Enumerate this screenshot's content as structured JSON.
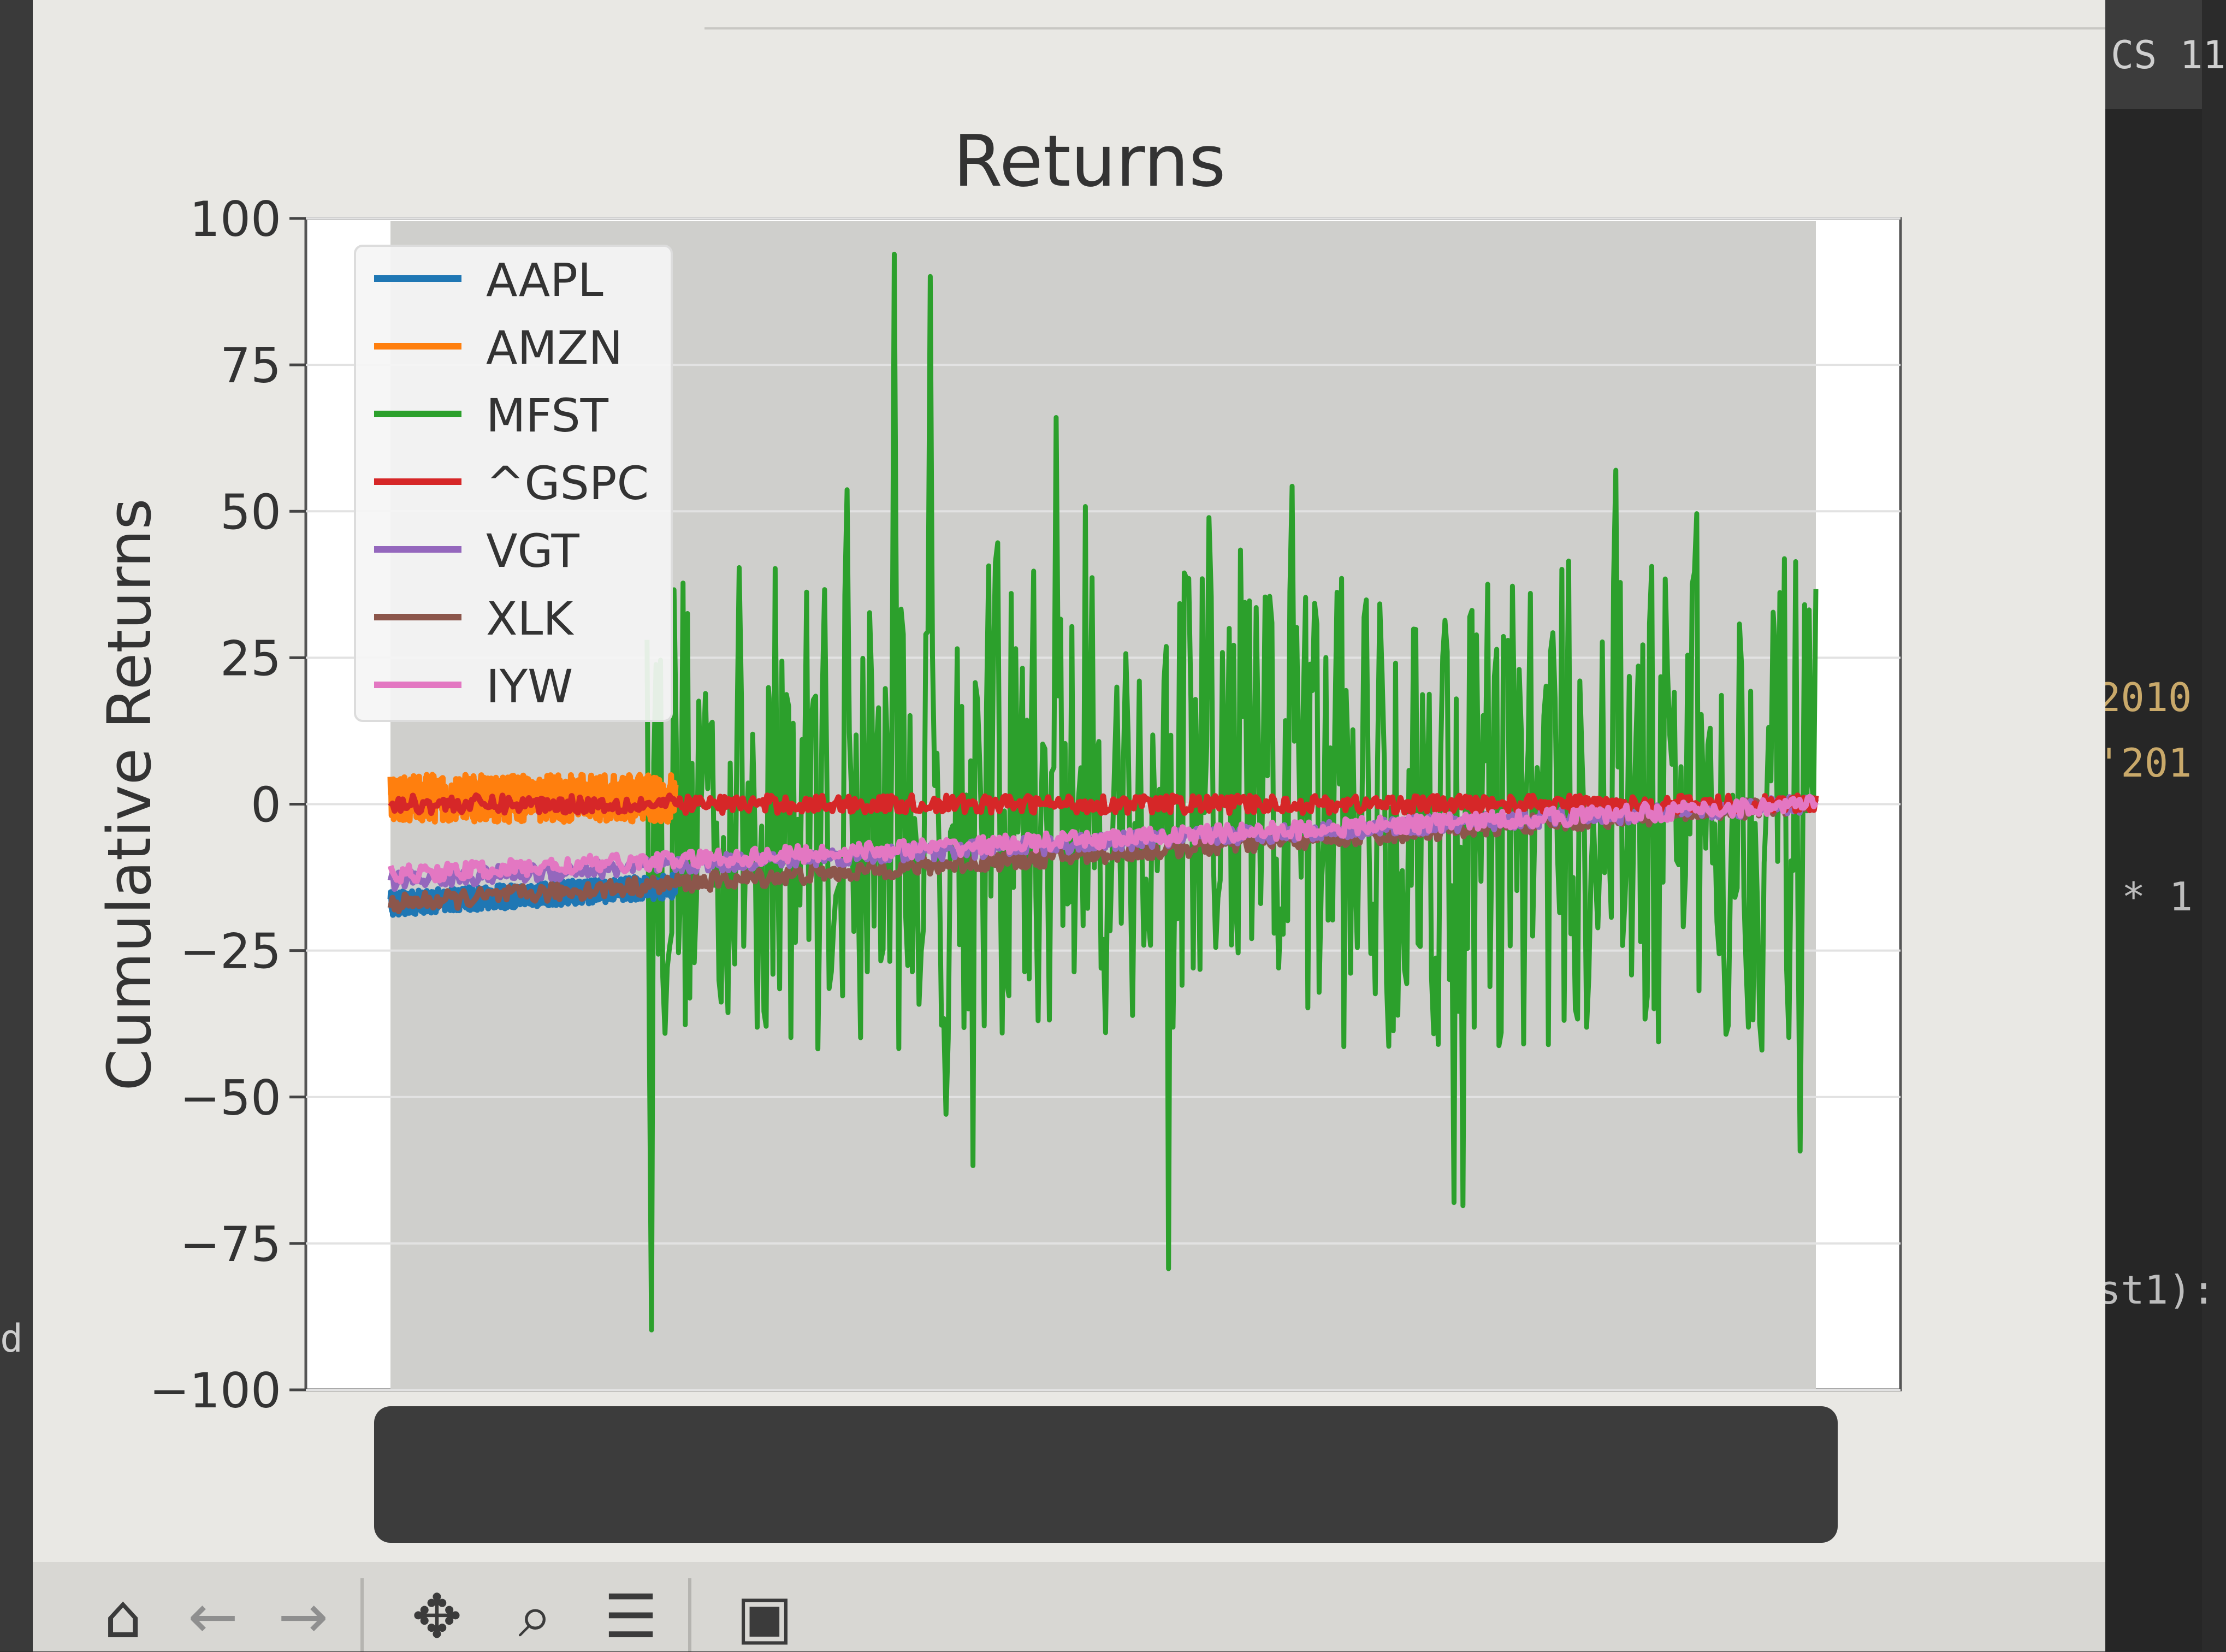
{
  "window": {
    "editor_tab_text": "CS 11",
    "code_fragments": [
      "2010",
      "'201",
      "* 1",
      "st1):"
    ],
    "left_fragment": "d",
    "accent_close": "#d9534f"
  },
  "toolbar": {
    "buttons": [
      {
        "name": "home-button",
        "icon": "home-icon",
        "glyph": "⌂"
      },
      {
        "name": "back-button",
        "icon": "arrow-left-icon",
        "glyph": "←"
      },
      {
        "name": "forward-button",
        "icon": "arrow-right-icon",
        "glyph": "→"
      },
      {
        "name": "pan-button",
        "icon": "move-icon",
        "glyph": "✥"
      },
      {
        "name": "zoom-button",
        "icon": "magnifier-icon",
        "glyph": "⌕"
      },
      {
        "name": "configure-button",
        "icon": "sliders-icon",
        "glyph": "☰"
      },
      {
        "name": "save-button",
        "icon": "floppy-disk-icon",
        "glyph": "▣"
      }
    ]
  },
  "chart_data": {
    "type": "line",
    "title": "Returns",
    "xlabel": "",
    "ylabel": "Cumulative Returns",
    "ylim": [
      -100,
      100
    ],
    "yticks": [
      -100,
      -75,
      -50,
      -25,
      0,
      25,
      50,
      75,
      100
    ],
    "yticklabels": [
      "−100",
      "−75",
      "−50",
      "−25",
      "0",
      "25",
      "50",
      "75",
      "100"
    ],
    "grid": true,
    "legend_position": "upper left",
    "series": [
      {
        "name": "AAPL",
        "color": "#1f77b4",
        "approx_level_start": -17,
        "approx_level_end": -14,
        "noise": 2,
        "x_start": 0.0,
        "x_end": 0.2
      },
      {
        "name": "AMZN",
        "color": "#ff7f0e",
        "approx_level_start": 1,
        "approx_level_end": 1,
        "noise": 4,
        "x_start": 0.0,
        "x_end": 0.2
      },
      {
        "name": "MFST",
        "color": "#2ca02c",
        "approx_level_start": 0,
        "approx_level_end": 0,
        "noise": 60,
        "x_start": 0.18,
        "x_end": 1.0
      },
      {
        "name": "^GSPC",
        "color": "#d62728",
        "approx_level_start": 0,
        "approx_level_end": 0,
        "noise": 1.5,
        "x_start": 0.0,
        "x_end": 1.0
      },
      {
        "name": "VGT",
        "color": "#9467bd",
        "approx_level_start": -13,
        "approx_level_end": 0,
        "noise": 1.5,
        "x_start": 0.0,
        "x_end": 1.0
      },
      {
        "name": "XLK",
        "color": "#8c564b",
        "approx_level_start": -17,
        "approx_level_end": 0,
        "noise": 1.5,
        "x_start": 0.0,
        "x_end": 1.0
      },
      {
        "name": "IYW",
        "color": "#e377c2",
        "approx_level_start": -12,
        "approx_level_end": 0,
        "noise": 1.5,
        "x_start": 0.0,
        "x_end": 1.0
      }
    ]
  }
}
